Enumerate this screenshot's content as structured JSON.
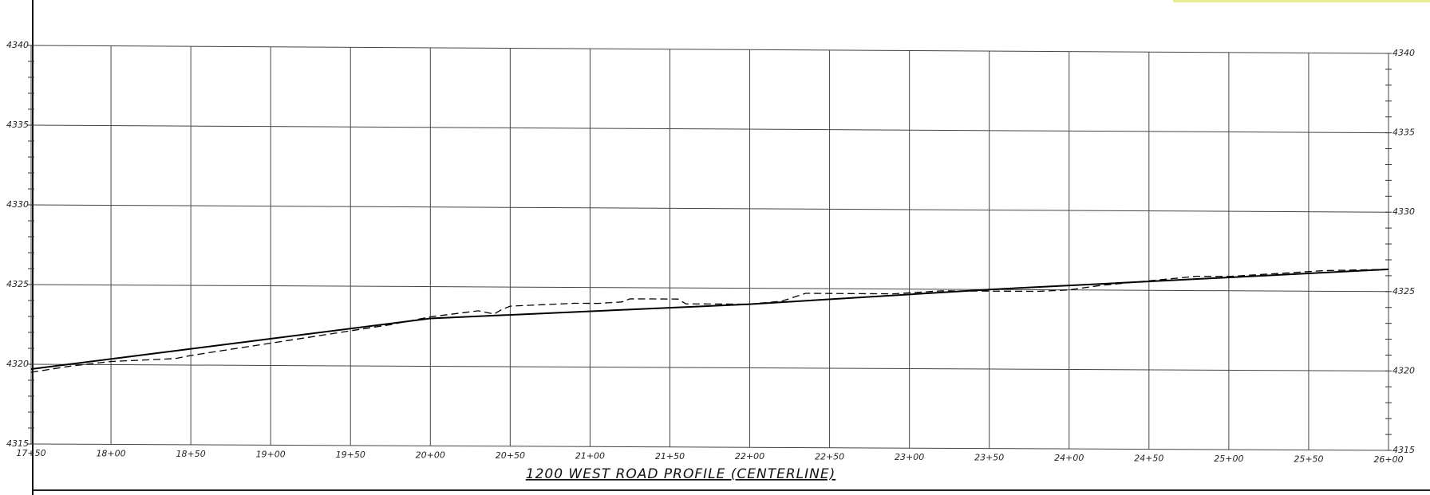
{
  "chart_data": {
    "type": "line",
    "title": "1200 WEST ROAD PROFILE (CENTERLINE)",
    "xlabel": "",
    "ylabel": "",
    "x_tick_labels": [
      "17+50",
      "18+00",
      "18+50",
      "19+00",
      "19+50",
      "20+00",
      "20+50",
      "21+00",
      "21+50",
      "22+00",
      "22+50",
      "23+00",
      "23+50",
      "24+00",
      "24+50",
      "25+00",
      "25+50",
      "26+00"
    ],
    "x_tick_values": [
      1750,
      1800,
      1850,
      1900,
      1950,
      2000,
      2050,
      2100,
      2150,
      2200,
      2250,
      2300,
      2350,
      2400,
      2450,
      2500,
      2550,
      2600
    ],
    "y_tick_labels": [
      "4315",
      "4320",
      "4325",
      "4330",
      "4335",
      "4340"
    ],
    "y_tick_values": [
      4315,
      4320,
      4325,
      4330,
      4335,
      4340
    ],
    "xlim": [
      1750,
      2600
    ],
    "ylim": [
      4315,
      4340
    ],
    "grid": true,
    "series": [
      {
        "style": "solid",
        "color": "#000000",
        "x": [
          1750,
          2000,
          2200,
          2350,
          2600
        ],
        "y": [
          4319.7,
          4323.0,
          4324.0,
          4325.0,
          4326.4
        ]
      },
      {
        "style": "dashed",
        "color": "#000000",
        "x": [
          1750,
          1775,
          1800,
          1820,
          1840,
          1850,
          1875,
          1900,
          1925,
          1950,
          1975,
          1995,
          2000,
          2015,
          2030,
          2040,
          2045,
          2050,
          2070,
          2090,
          2105,
          2120,
          2125,
          2150,
          2155,
          2160,
          2170,
          2190,
          2200,
          2220,
          2235,
          2260,
          2290,
          2320,
          2350,
          2380,
          2400,
          2420,
          2450,
          2480,
          2500,
          2530,
          2560,
          2600
        ],
        "y": [
          4319.5,
          4319.9,
          4320.2,
          4320.3,
          4320.4,
          4320.6,
          4321.0,
          4321.4,
          4321.8,
          4322.2,
          4322.6,
          4323.0,
          4323.1,
          4323.3,
          4323.5,
          4323.3,
          4323.6,
          4323.8,
          4323.9,
          4324.0,
          4324.0,
          4324.1,
          4324.3,
          4324.3,
          4324.3,
          4324.0,
          4324.0,
          4324.0,
          4324.0,
          4324.2,
          4324.7,
          4324.7,
          4324.7,
          4324.9,
          4324.9,
          4324.9,
          4325.0,
          4325.3,
          4325.6,
          4325.9,
          4325.9,
          4326.1,
          4326.3,
          4326.4
        ]
      }
    ]
  }
}
